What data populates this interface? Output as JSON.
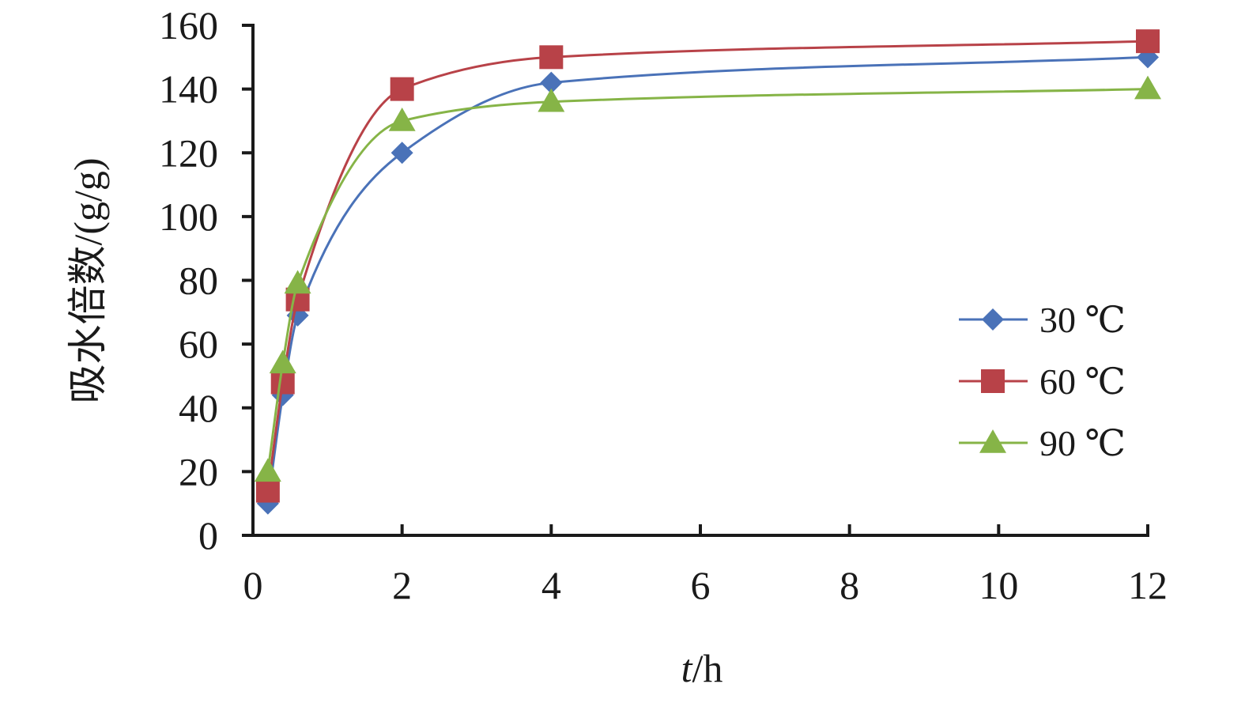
{
  "chart_data": {
    "type": "line",
    "title": "",
    "xlabel_italic": "t",
    "xlabel_rest": "/h",
    "ylabel": "吸水倍数/(g/g)",
    "xlim": [
      0,
      12
    ],
    "ylim": [
      0,
      160
    ],
    "x_ticks": [
      0,
      2,
      4,
      6,
      8,
      10,
      12
    ],
    "y_ticks": [
      0,
      20,
      40,
      60,
      80,
      100,
      120,
      140,
      160
    ],
    "grid": false,
    "smooth": true,
    "legend_position": "right",
    "series": [
      {
        "name": "30 ℃",
        "color": "#4a72b8",
        "marker": "diamond",
        "x": [
          0.2,
          0.4,
          0.6,
          2,
          4,
          12
        ],
        "y": [
          10,
          44,
          69,
          120,
          142,
          150
        ]
      },
      {
        "name": "60 ℃",
        "color": "#b84248",
        "marker": "square",
        "x": [
          0.2,
          0.4,
          0.6,
          2,
          4,
          12
        ],
        "y": [
          14,
          48,
          74,
          140,
          150,
          155
        ]
      },
      {
        "name": "90 ℃",
        "color": "#86b447",
        "marker": "triangle",
        "x": [
          0.2,
          0.4,
          0.6,
          2,
          4,
          12
        ],
        "y": [
          20,
          54,
          79,
          130,
          136,
          140
        ]
      }
    ]
  }
}
